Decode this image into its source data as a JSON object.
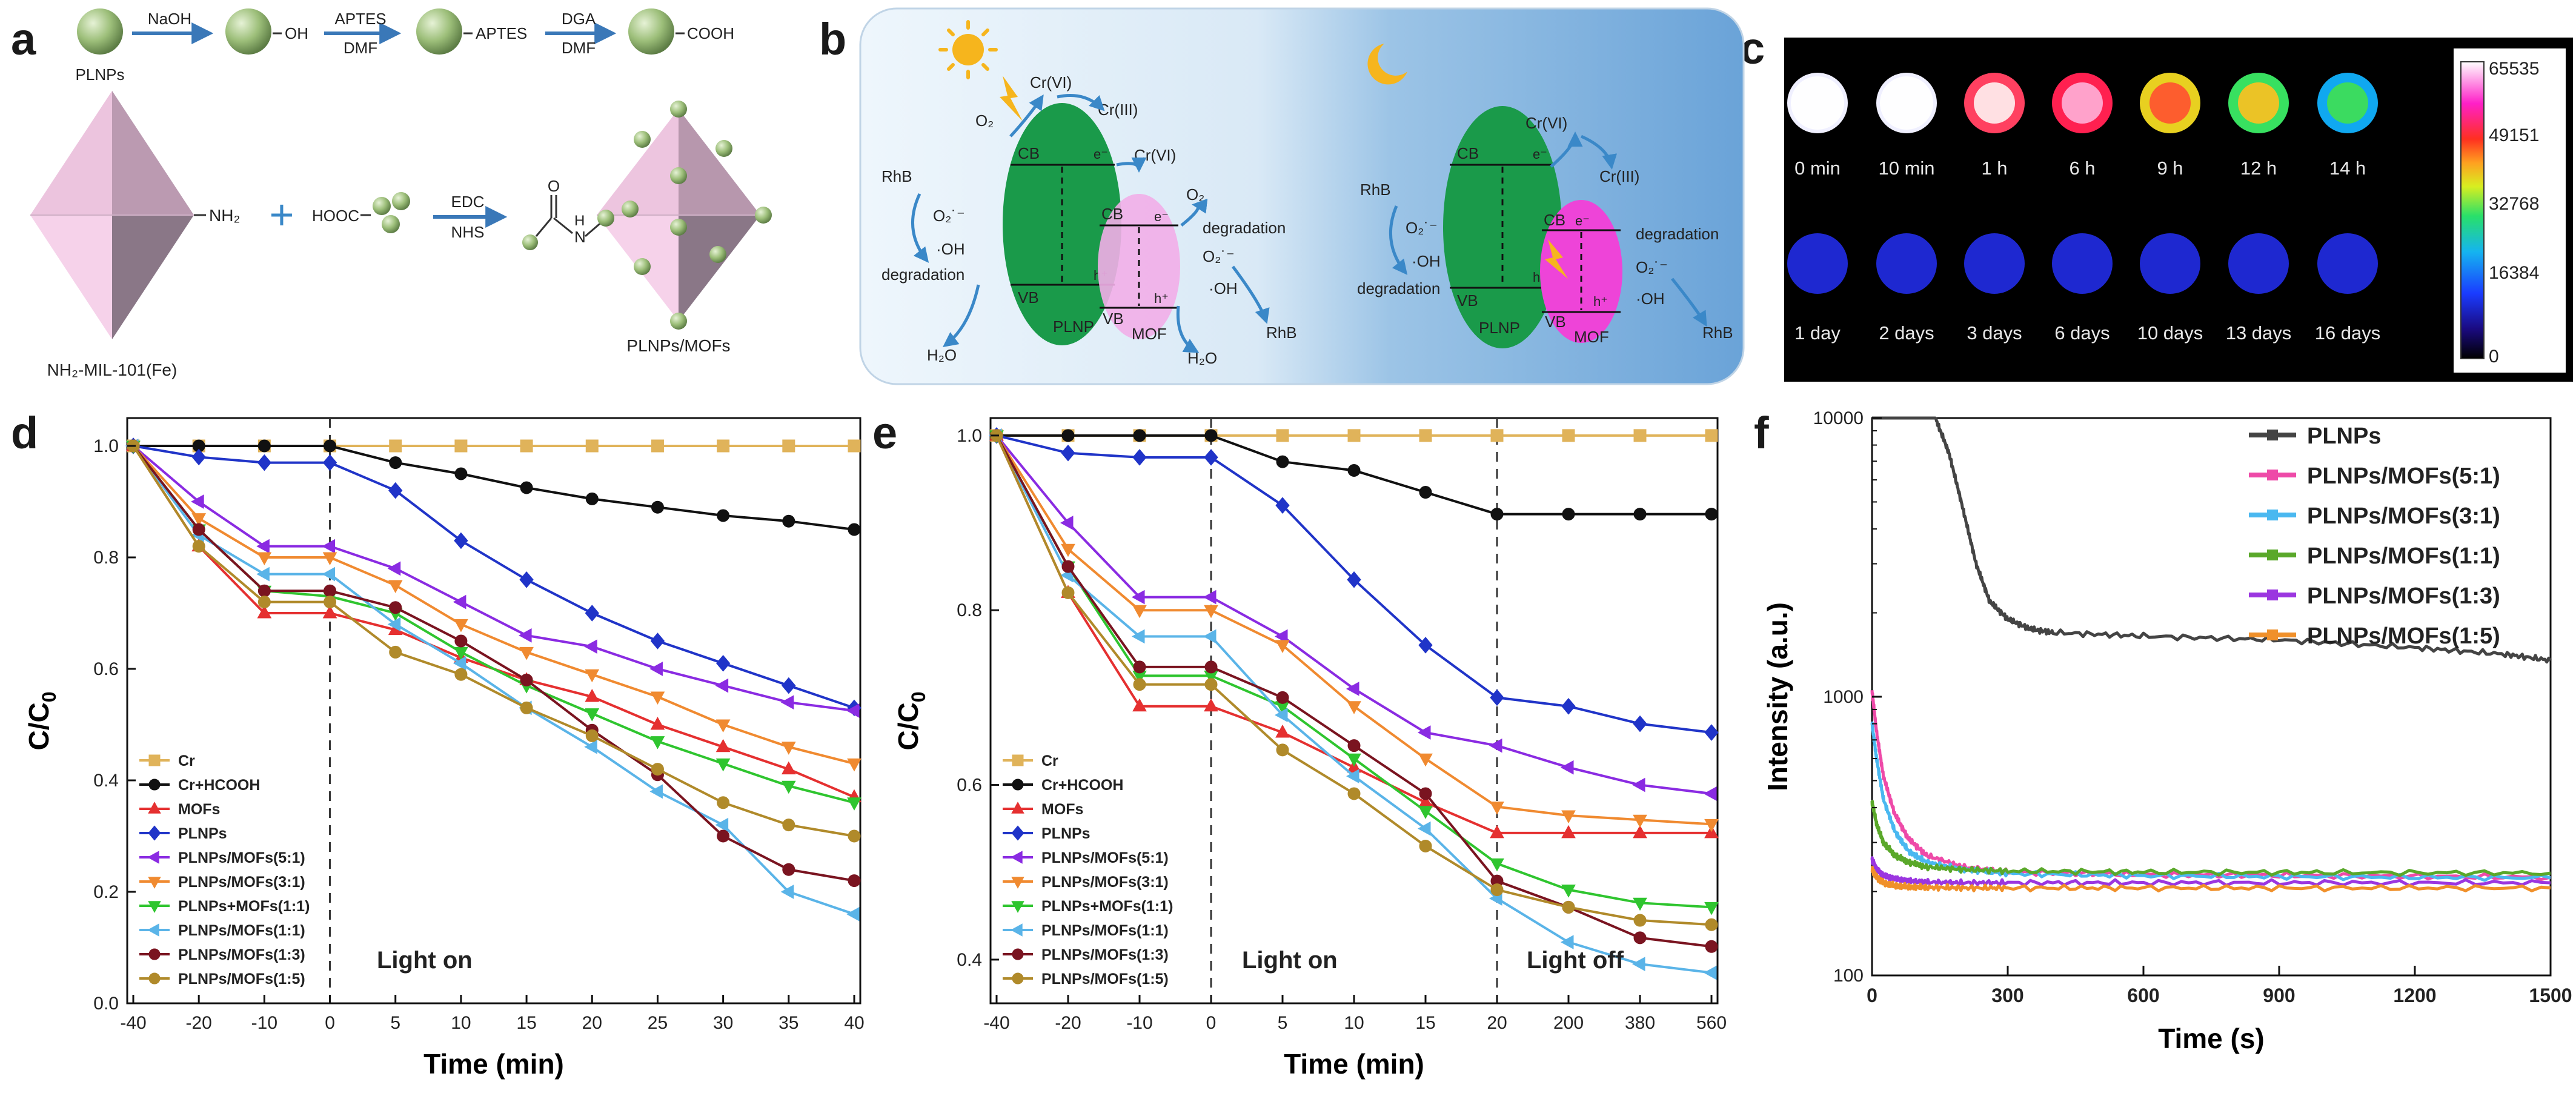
{
  "panel_labels": [
    "a",
    "b",
    "c",
    "d",
    "e",
    "f"
  ],
  "colors": {
    "sphere": "#9dbf7a",
    "arrow": "#3a78b8",
    "octa_light": "#f2c6e4",
    "octa_dark": "#7d6a7a",
    "mof_pink": "#ee44d8",
    "plnp_green": "#1a9a4a",
    "panel_b_day": "#e9f3fb",
    "panel_b_night": "#6ea6d8"
  },
  "panel_a": {
    "label_plnps": "PLNPs",
    "step1": {
      "reagent": "NaOH",
      "product": "OH"
    },
    "step2": {
      "reagent_top": "APTES",
      "reagent_bottom": "DMF",
      "product": "APTES"
    },
    "step3": {
      "reagent_top": "DGA",
      "reagent_bottom": "DMF",
      "product": "COOH"
    },
    "nh2_group": "NH₂",
    "plus": "+",
    "hooc": "HOOC",
    "step4": {
      "reagent_top": "EDC",
      "reagent_bottom": "NHS"
    },
    "amide_o": "O",
    "amide_h": "H",
    "amide_n": "N",
    "label_mof": "NH₂-MIL-101(Fe)",
    "label_composite": "PLNPs/MOFs"
  },
  "panel_b": {
    "sun_icon": "sun-icon",
    "moon_icon": "moon-icon",
    "day": {
      "o2": "O₂",
      "cr6_top": "Cr(VI)",
      "cr3": "Cr(III)",
      "cr6_right": "Cr(VI)",
      "o2_right": "O₂",
      "rhb_left": "RhB",
      "o2_rad": "O₂˙⁻",
      "oh": "·OH",
      "degradation_left": "degradation",
      "cb": "CB",
      "vb": "VB",
      "e": "e⁻",
      "h": "h⁺",
      "h2o_left": "H₂O",
      "plnp": "PLNP",
      "cb_mof": "CB",
      "vb_mof": "VB",
      "mof": "MOF",
      "degradation_right": "degradation",
      "o2_rad_right": "O₂˙⁻",
      "oh_right": "·OH",
      "h2o_right": "H₂O",
      "rhb_right": "RhB"
    },
    "night": {
      "rhb_left": "RhB",
      "o2_rad": "O₂˙⁻",
      "oh": "·OH",
      "degradation_left": "degradation",
      "cr6": "Cr(VI)",
      "cr3": "Cr(III)",
      "cb": "CB",
      "vb": "VB",
      "e": "e⁻",
      "h": "h⁺",
      "plnp": "PLNP",
      "cb_mof": "CB",
      "vb_mof": "VB",
      "mof": "MOF",
      "degradation_right": "degradation",
      "o2_rad_right": "O₂˙⁻",
      "oh_right": "·OH",
      "rhb_right": "RhB"
    }
  },
  "panel_c": {
    "row1_labels": [
      "0 min",
      "10 min",
      "1 h",
      "6 h",
      "9 h",
      "12 h",
      "14 h"
    ],
    "row1_intensity": [
      1.0,
      0.97,
      0.85,
      0.74,
      0.66,
      0.57,
      0.45
    ],
    "row2_labels": [
      "1 day",
      "2 days",
      "3 days",
      "6 days",
      "10 days",
      "13 days",
      "16 days"
    ],
    "row2_intensity": [
      0.03,
      0.025,
      0.02,
      0.02,
      0.015,
      0.015,
      0.01
    ],
    "colorbar_ticks": [
      "65535",
      "49151",
      "32768",
      "16384",
      "0"
    ]
  },
  "panel_d": {
    "ylabel": "C/C",
    "ylabel_sub": "0",
    "xlabel": "Time (min)",
    "annotation": "Light on",
    "y_ticks": [
      "0.0",
      "0.2",
      "0.4",
      "0.6",
      "0.8",
      "1.0"
    ],
    "x_ticks": [
      "-40",
      "-20",
      "-10",
      "0",
      "5",
      "10",
      "15",
      "20",
      "25",
      "30",
      "35",
      "40"
    ]
  },
  "panel_e": {
    "ylabel": "C/C",
    "ylabel_sub": "0",
    "xlabel": "Time (min)",
    "annotation_on": "Light on",
    "annotation_off": "Light off",
    "y_ticks": [
      "0.4",
      "0.6",
      "0.8",
      "1.0"
    ],
    "x_ticks": [
      "-40",
      "-20",
      "-10",
      "0",
      "5",
      "10",
      "15",
      "20",
      "200",
      "380",
      "560"
    ]
  },
  "panel_f": {
    "ylabel": "Intensity (a.u.)",
    "xlabel": "Time (s)",
    "y_ticks": [
      "100",
      "1000",
      "10000"
    ],
    "x_ticks": [
      "0",
      "300",
      "600",
      "900",
      "1200",
      "1500"
    ]
  },
  "chart_data": [
    {
      "id": "d",
      "type": "line",
      "xlabel": "Time (min)",
      "ylabel": "C/C0",
      "categories": [
        "-40",
        "-20",
        "-10",
        "0",
        "5",
        "10",
        "15",
        "20",
        "25",
        "30",
        "35",
        "40"
      ],
      "ylim": [
        0,
        1.05
      ],
      "legend": "bottom-left",
      "series": [
        {
          "name": "Cr",
          "color": "#e0b35a",
          "marker": "square",
          "values": [
            1.0,
            1.0,
            1.0,
            1.0,
            1.0,
            1.0,
            1.0,
            1.0,
            1.0,
            1.0,
            1.0,
            1.0
          ]
        },
        {
          "name": "Cr+HCOOH",
          "color": "#111111",
          "marker": "circle",
          "values": [
            1.0,
            1.0,
            1.0,
            1.0,
            0.97,
            0.95,
            0.925,
            0.905,
            0.89,
            0.875,
            0.865,
            0.85
          ]
        },
        {
          "name": "MOFs",
          "color": "#e53030",
          "marker": "triangle",
          "values": [
            1.0,
            0.82,
            0.7,
            0.7,
            0.67,
            0.62,
            0.58,
            0.55,
            0.5,
            0.46,
            0.42,
            0.37
          ]
        },
        {
          "name": "PLNPs",
          "color": "#2034c8",
          "marker": "diamond",
          "values": [
            1.0,
            0.98,
            0.97,
            0.97,
            0.92,
            0.83,
            0.76,
            0.7,
            0.65,
            0.61,
            0.57,
            0.53
          ]
        },
        {
          "name": "PLNPs/MOFs(5:1)",
          "color": "#8a2be2",
          "marker": "triangle-left",
          "values": [
            1.0,
            0.9,
            0.82,
            0.82,
            0.78,
            0.72,
            0.66,
            0.64,
            0.6,
            0.57,
            0.54,
            0.525
          ]
        },
        {
          "name": "PLNPs/MOFs(3:1)",
          "color": "#f08a30",
          "marker": "triangle-down",
          "values": [
            1.0,
            0.87,
            0.8,
            0.8,
            0.75,
            0.68,
            0.63,
            0.59,
            0.55,
            0.5,
            0.46,
            0.43
          ]
        },
        {
          "name": "PLNPs+MOFs(1:1)",
          "color": "#2fc52f",
          "marker": "triangle-down",
          "values": [
            1.0,
            0.85,
            0.74,
            0.73,
            0.7,
            0.63,
            0.57,
            0.52,
            0.47,
            0.43,
            0.39,
            0.36
          ]
        },
        {
          "name": "PLNPs/MOFs(1:1)",
          "color": "#5ab4e8",
          "marker": "triangle-left",
          "values": [
            1.0,
            0.84,
            0.77,
            0.77,
            0.68,
            0.61,
            0.53,
            0.46,
            0.38,
            0.32,
            0.2,
            0.16
          ]
        },
        {
          "name": "PLNPs/MOFs(1:3)",
          "color": "#7a1420",
          "marker": "circle",
          "values": [
            1.0,
            0.85,
            0.74,
            0.74,
            0.71,
            0.65,
            0.58,
            0.49,
            0.41,
            0.3,
            0.24,
            0.22
          ]
        },
        {
          "name": "PLNPs/MOFs(1:5)",
          "color": "#b08a2a",
          "marker": "circle",
          "values": [
            1.0,
            0.82,
            0.72,
            0.72,
            0.63,
            0.59,
            0.53,
            0.48,
            0.42,
            0.36,
            0.32,
            0.3
          ]
        }
      ]
    },
    {
      "id": "e",
      "type": "line",
      "xlabel": "Time (min)",
      "ylabel": "C/C0",
      "categories": [
        "-40",
        "-20",
        "-10",
        "0",
        "5",
        "10",
        "15",
        "20",
        "200",
        "380",
        "560"
      ],
      "ylim": [
        0.35,
        1.02
      ],
      "legend": "bottom-left",
      "series": [
        {
          "name": "Cr",
          "color": "#e0b35a",
          "marker": "square",
          "values": [
            1.0,
            1.0,
            1.0,
            1.0,
            1.0,
            1.0,
            1.0,
            1.0,
            1.0,
            1.0,
            1.0
          ]
        },
        {
          "name": "Cr+HCOOH",
          "color": "#111111",
          "marker": "circle",
          "values": [
            1.0,
            1.0,
            1.0,
            1.0,
            0.97,
            0.96,
            0.935,
            0.91,
            0.91,
            0.91,
            0.91
          ]
        },
        {
          "name": "MOFs",
          "color": "#e53030",
          "marker": "triangle",
          "values": [
            1.0,
            0.82,
            0.69,
            0.69,
            0.66,
            0.62,
            0.58,
            0.545,
            0.545,
            0.545,
            0.545
          ]
        },
        {
          "name": "PLNPs",
          "color": "#2034c8",
          "marker": "diamond",
          "values": [
            1.0,
            0.98,
            0.975,
            0.975,
            0.92,
            0.835,
            0.76,
            0.7,
            0.69,
            0.67,
            0.66
          ]
        },
        {
          "name": "PLNPs/MOFs(5:1)",
          "color": "#8a2be2",
          "marker": "triangle-left",
          "values": [
            1.0,
            0.9,
            0.815,
            0.815,
            0.77,
            0.71,
            0.66,
            0.645,
            0.62,
            0.6,
            0.59
          ]
        },
        {
          "name": "PLNPs/MOFs(3:1)",
          "color": "#f08a30",
          "marker": "triangle-down",
          "values": [
            1.0,
            0.87,
            0.8,
            0.8,
            0.76,
            0.69,
            0.63,
            0.575,
            0.565,
            0.56,
            0.555
          ]
        },
        {
          "name": "PLNPs+MOFs(1:1)",
          "color": "#2fc52f",
          "marker": "triangle-down",
          "values": [
            1.0,
            0.85,
            0.725,
            0.725,
            0.69,
            0.63,
            0.57,
            0.51,
            0.48,
            0.465,
            0.46
          ]
        },
        {
          "name": "PLNPs/MOFs(1:1)",
          "color": "#5ab4e8",
          "marker": "triangle-left",
          "values": [
            1.0,
            0.84,
            0.77,
            0.77,
            0.68,
            0.61,
            0.55,
            0.47,
            0.42,
            0.395,
            0.385
          ]
        },
        {
          "name": "PLNPs/MOFs(1:3)",
          "color": "#7a1420",
          "marker": "circle",
          "values": [
            1.0,
            0.85,
            0.735,
            0.735,
            0.7,
            0.645,
            0.59,
            0.49,
            0.46,
            0.425,
            0.415
          ]
        },
        {
          "name": "PLNPs/MOFs(1:5)",
          "color": "#b08a2a",
          "marker": "circle",
          "values": [
            1.0,
            0.82,
            0.715,
            0.715,
            0.64,
            0.59,
            0.53,
            0.48,
            0.46,
            0.445,
            0.44
          ]
        }
      ]
    },
    {
      "id": "f",
      "type": "line",
      "xlabel": "Time (s)",
      "ylabel": "Intensity (a.u.)",
      "xlim": [
        0,
        1500
      ],
      "ylim": [
        100,
        10000
      ],
      "yscale": "log",
      "legend": "top-right",
      "series": [
        {
          "name": "PLNPs",
          "color": "#444444",
          "x": [
            0,
            50,
            100,
            140,
            170,
            200,
            230,
            260,
            300,
            350,
            400,
            600,
            900,
            1200,
            1400,
            1500
          ],
          "values": [
            10000,
            10000,
            10000,
            10000,
            7500,
            4800,
            3000,
            2200,
            1900,
            1750,
            1700,
            1650,
            1600,
            1500,
            1420,
            1350
          ]
        },
        {
          "name": "PLNPs/MOFs(5:1)",
          "color": "#ee4aa8",
          "x": [
            0,
            10,
            25,
            50,
            80,
            120,
            200,
            300,
            600,
            1000,
            1500
          ],
          "values": [
            1050,
            750,
            520,
            380,
            310,
            270,
            245,
            235,
            230,
            228,
            225
          ]
        },
        {
          "name": "PLNPs/MOFs(3:1)",
          "color": "#4ab8f0",
          "x": [
            0,
            10,
            25,
            50,
            80,
            120,
            200,
            300,
            600,
            1000,
            1500
          ],
          "values": [
            800,
            600,
            430,
            330,
            280,
            255,
            240,
            232,
            228,
            226,
            224
          ]
        },
        {
          "name": "PLNPs/MOFs(1:1)",
          "color": "#5aa82a",
          "x": [
            0,
            10,
            25,
            50,
            80,
            120,
            200,
            300,
            600,
            1000,
            1500
          ],
          "values": [
            420,
            350,
            300,
            270,
            255,
            245,
            240,
            237,
            235,
            234,
            233
          ]
        },
        {
          "name": "PLNPs/MOFs(1:3)",
          "color": "#9b36e0",
          "x": [
            0,
            10,
            25,
            50,
            80,
            120,
            200,
            300,
            600,
            1000,
            1500
          ],
          "values": [
            260,
            240,
            228,
            222,
            218,
            216,
            215,
            215,
            215,
            215,
            215
          ]
        },
        {
          "name": "PLNPs/MOFs(1:5)",
          "color": "#f0902a",
          "x": [
            0,
            10,
            25,
            50,
            80,
            120,
            200,
            300,
            600,
            1000,
            1500
          ],
          "values": [
            240,
            225,
            215,
            210,
            208,
            207,
            206,
            206,
            206,
            206,
            206
          ]
        }
      ]
    }
  ]
}
